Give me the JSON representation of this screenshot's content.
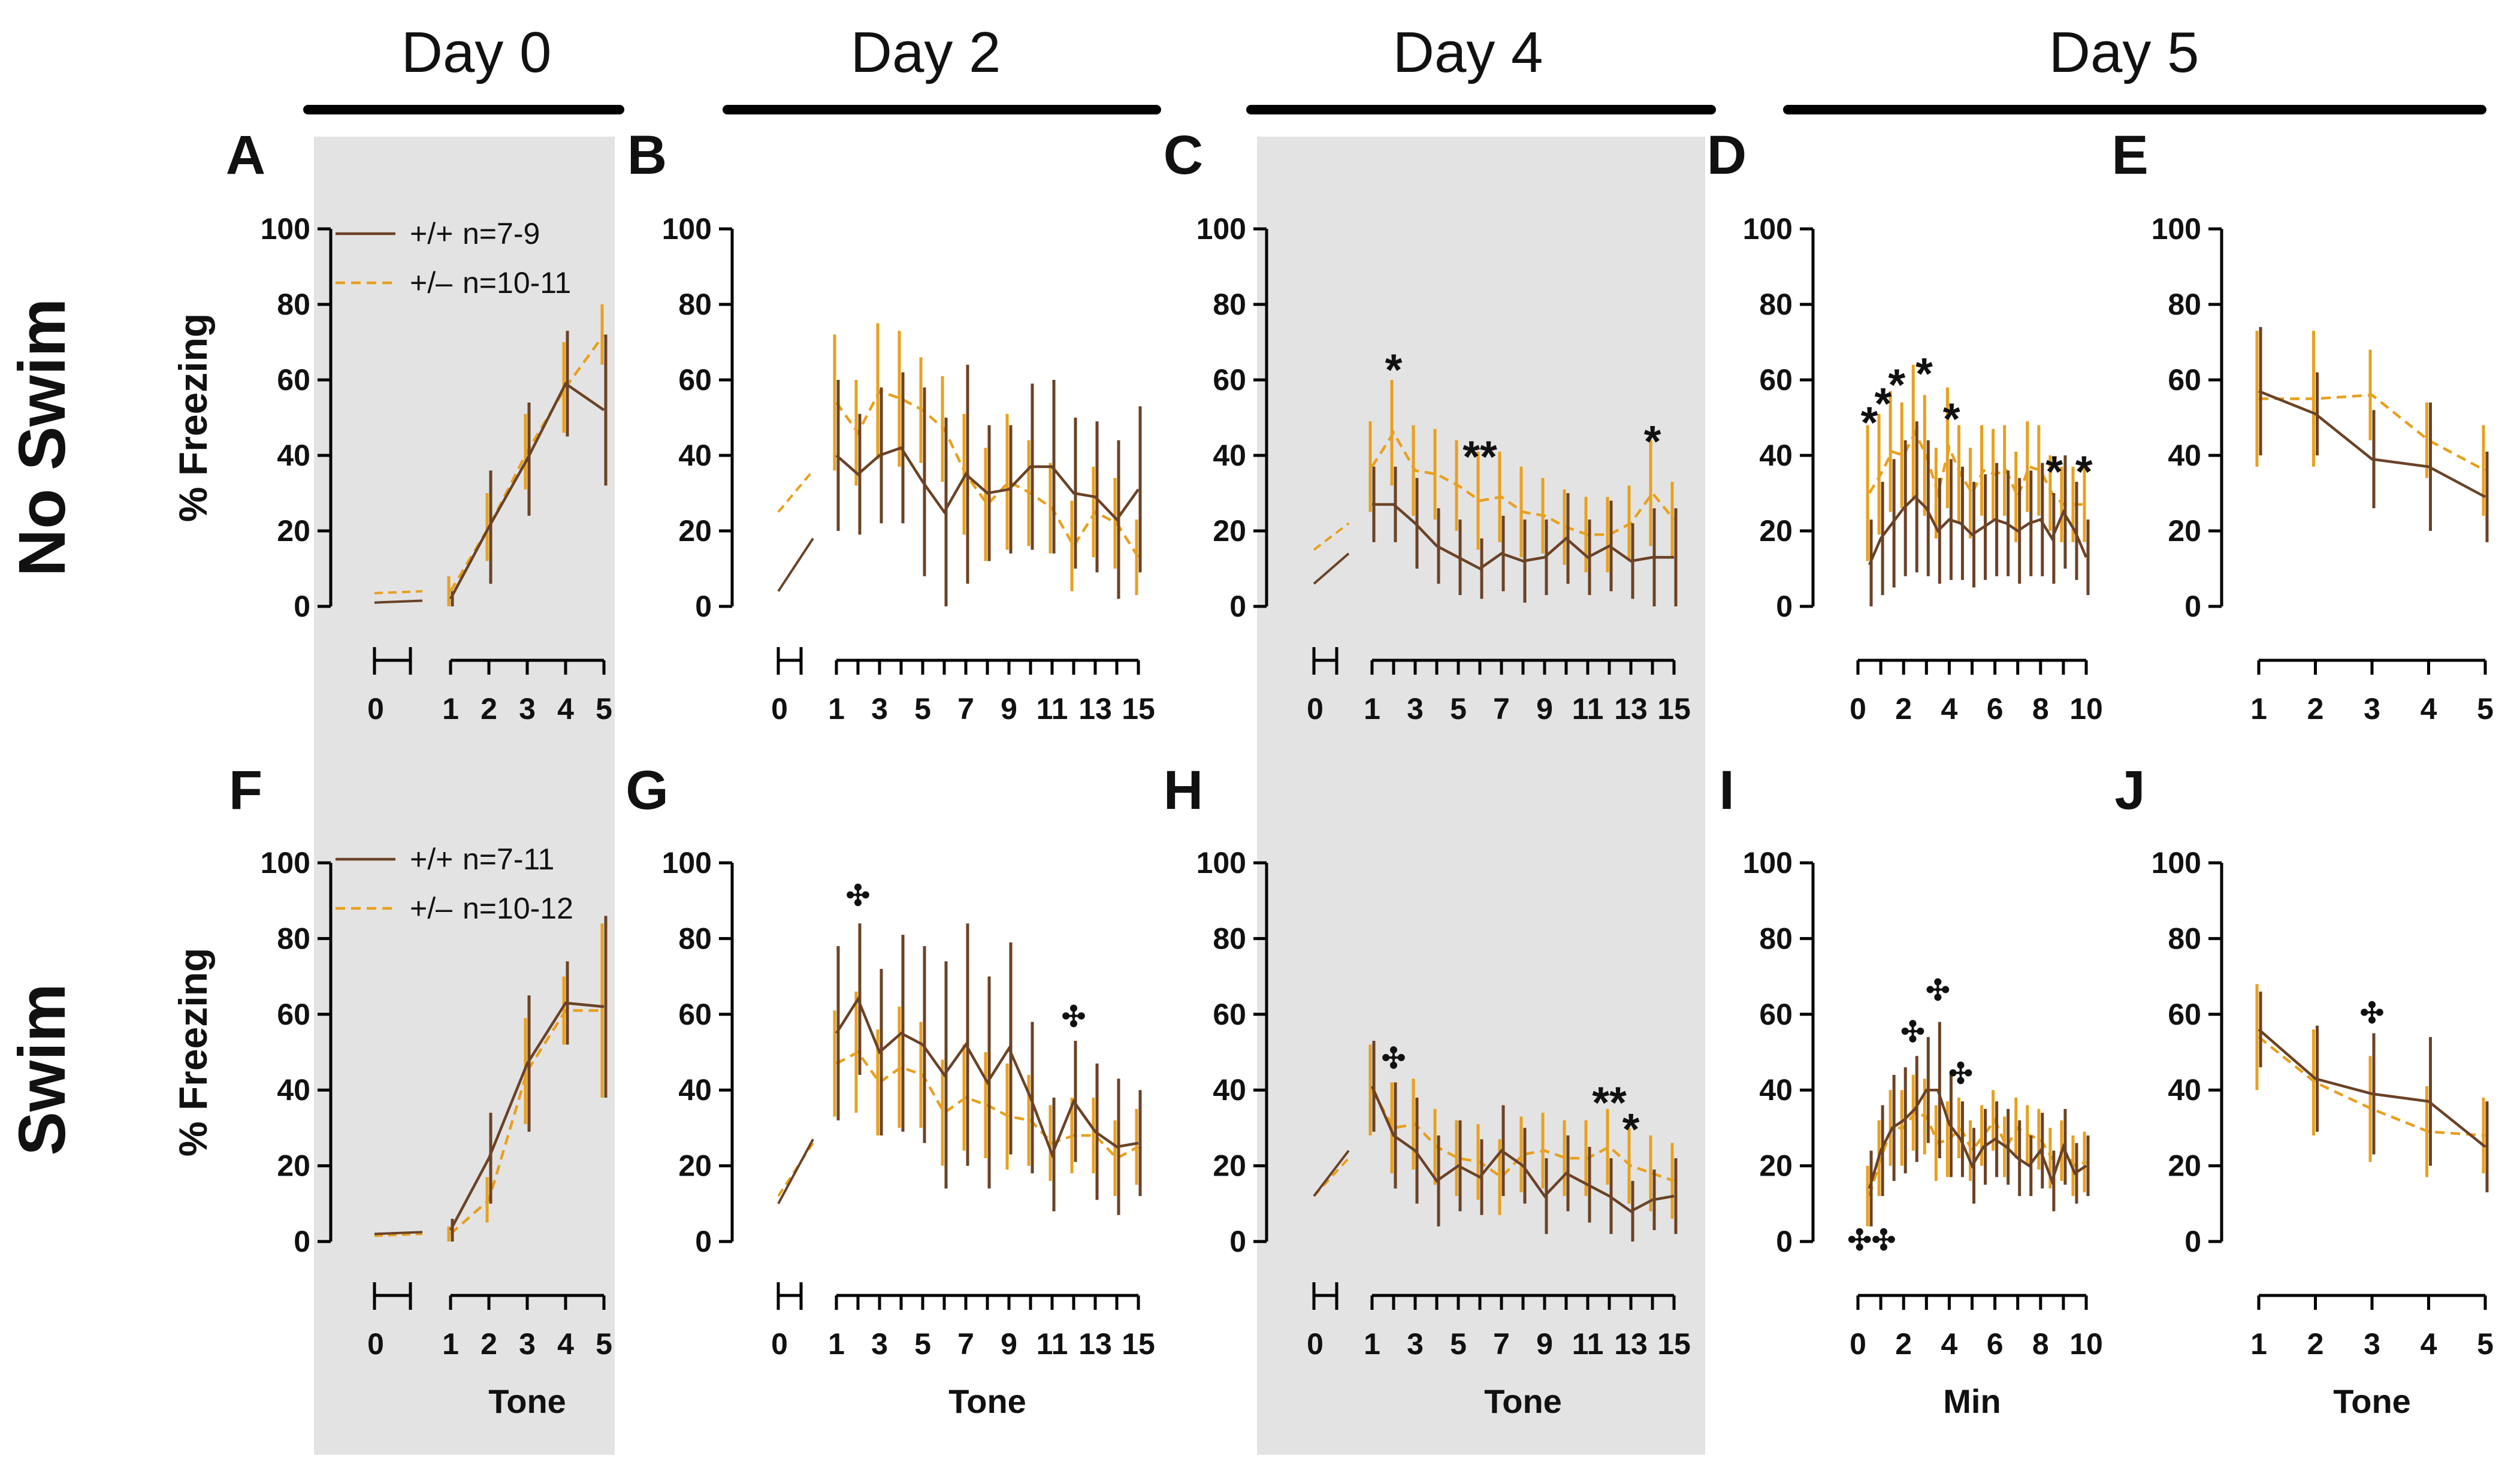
{
  "figure": {
    "days": [
      "Day 0",
      "Day 2",
      "Day 4",
      "Day 5"
    ],
    "rows": [
      "No Swim",
      "Swim"
    ],
    "ylabel": "% Freezing",
    "yticks": [
      "0",
      "20",
      "40",
      "60",
      "80",
      "100"
    ],
    "xlabels": {
      "tone": "Tone",
      "min": "Min"
    },
    "baseline_tick": "0",
    "legend_top": [
      {
        "genotype": "+/+",
        "n": "n=7-9",
        "style": "solid"
      },
      {
        "genotype": "+/–",
        "n": "n=10-11",
        "style": "dashed"
      }
    ],
    "legend_bottom": [
      {
        "genotype": "+/+",
        "n": "n=7-11",
        "style": "solid"
      },
      {
        "genotype": "+/–",
        "n": "n=10-12",
        "style": "dashed"
      }
    ]
  },
  "colors": {
    "wt": "#6b4226",
    "het": "#e8a01e",
    "shade": "#e3e3e3",
    "text": "#111111"
  },
  "chart_data": [
    {
      "panel": "A",
      "type": "line",
      "row": "No Swim",
      "day": "Day 0",
      "ylim": [
        0,
        100
      ],
      "xlabel": "",
      "baseline": {
        "wt": [
          1,
          1.5
        ],
        "het": [
          3.5,
          4
        ]
      },
      "x": [
        1,
        2,
        3,
        4,
        5
      ],
      "xticks": [
        "1",
        "2",
        "3",
        "4",
        "5"
      ],
      "series": [
        {
          "name": "+/+",
          "values": [
            2,
            21,
            39,
            59,
            52
          ],
          "err": [
            2,
            15,
            15,
            14,
            20
          ]
        },
        {
          "name": "+/–",
          "values": [
            4,
            21,
            41,
            58,
            72
          ],
          "err": [
            4,
            9,
            10,
            12,
            8
          ]
        }
      ],
      "annotations": []
    },
    {
      "panel": "B",
      "type": "line",
      "row": "No Swim",
      "day": "Day 2",
      "ylim": [
        0,
        100
      ],
      "xlabel": "",
      "baseline": {
        "wt": [
          4,
          18
        ],
        "het": [
          25,
          36
        ]
      },
      "x": [
        1,
        2,
        3,
        4,
        5,
        6,
        7,
        8,
        9,
        10,
        11,
        12,
        13,
        14,
        15
      ],
      "xticks": [
        "1",
        "3",
        "5",
        "7",
        "9",
        "11",
        "13",
        "15"
      ],
      "series": [
        {
          "name": "+/+",
          "values": [
            40,
            35,
            40,
            42,
            33,
            25,
            35,
            30,
            31,
            37,
            37,
            30,
            29,
            23,
            31
          ],
          "err": [
            20,
            16,
            18,
            20,
            25,
            25,
            29,
            18,
            17,
            22,
            23,
            20,
            20,
            21,
            22
          ]
        },
        {
          "name": "+/–",
          "values": [
            54,
            46,
            57,
            55,
            52,
            47,
            35,
            27,
            33,
            30,
            26,
            16,
            25,
            22,
            13
          ],
          "err": [
            18,
            14,
            18,
            18,
            14,
            14,
            16,
            15,
            18,
            14,
            12,
            12,
            12,
            12,
            10
          ]
        }
      ],
      "annotations": []
    },
    {
      "panel": "C",
      "type": "line",
      "row": "No Swim",
      "day": "Day 4",
      "ylim": [
        0,
        100
      ],
      "xlabel": "",
      "baseline": {
        "wt": [
          6,
          14
        ],
        "het": [
          15,
          22
        ]
      },
      "x": [
        1,
        2,
        3,
        4,
        5,
        6,
        7,
        8,
        9,
        10,
        11,
        12,
        13,
        14,
        15
      ],
      "xticks": [
        "1",
        "3",
        "5",
        "7",
        "9",
        "11",
        "13",
        "15"
      ],
      "series": [
        {
          "name": "+/+",
          "values": [
            27,
            27,
            22,
            16,
            13,
            10,
            14,
            12,
            13,
            18,
            13,
            16,
            12,
            13,
            13
          ],
          "err": [
            10,
            10,
            12,
            10,
            10,
            8,
            10,
            11,
            10,
            12,
            10,
            12,
            10,
            13,
            13
          ]
        },
        {
          "name": "+/–",
          "values": [
            37,
            46,
            36,
            35,
            32,
            28,
            29,
            25,
            24,
            21,
            19,
            19,
            22,
            30,
            23
          ],
          "err": [
            12,
            14,
            12,
            12,
            12,
            13,
            12,
            12,
            10,
            10,
            10,
            10,
            10,
            14,
            10
          ]
        }
      ],
      "annotations": [
        {
          "text": "*",
          "x": 2,
          "y": 65
        },
        {
          "text": "**",
          "x": 6,
          "y": 42
        },
        {
          "text": "*",
          "x": 14,
          "y": 46
        }
      ]
    },
    {
      "panel": "D",
      "type": "line",
      "row": "No Swim",
      "day": "Day 5",
      "ylim": [
        0,
        100
      ],
      "xlabel": "",
      "x": [
        0.5,
        1,
        1.5,
        2,
        2.5,
        3,
        3.5,
        4,
        4.5,
        5,
        5.5,
        6,
        6.5,
        7,
        7.5,
        8,
        8.5,
        9,
        9.5,
        10
      ],
      "xticks": [
        "0",
        "2",
        "4",
        "6",
        "8",
        "10"
      ],
      "series": [
        {
          "name": "+/+",
          "values": [
            11,
            18,
            22,
            26,
            29,
            26,
            20,
            23,
            22,
            19,
            21,
            23,
            22,
            20,
            22,
            23,
            18,
            25,
            20,
            13
          ],
          "err": [
            12,
            15,
            17,
            18,
            20,
            18,
            14,
            16,
            15,
            14,
            14,
            15,
            14,
            14,
            14,
            15,
            12,
            15,
            13,
            10
          ]
        },
        {
          "name": "+/–",
          "values": [
            30,
            35,
            41,
            40,
            46,
            40,
            30,
            42,
            35,
            30,
            36,
            35,
            36,
            29,
            37,
            36,
            30,
            27,
            27,
            27
          ],
          "err": [
            18,
            16,
            16,
            14,
            18,
            16,
            12,
            16,
            13,
            12,
            12,
            12,
            12,
            12,
            12,
            12,
            10,
            10,
            10,
            10
          ]
        }
      ],
      "annotations": [
        {
          "text": "*",
          "x": 0.5,
          "y": 51
        },
        {
          "text": "*",
          "x": 1.1,
          "y": 56
        },
        {
          "text": "*",
          "x": 1.7,
          "y": 61
        },
        {
          "text": "*",
          "x": 2.9,
          "y": 64
        },
        {
          "text": "*",
          "x": 4.1,
          "y": 52
        },
        {
          "text": "*",
          "x": 8.6,
          "y": 38
        },
        {
          "text": "*",
          "x": 9.9,
          "y": 38
        }
      ]
    },
    {
      "panel": "E",
      "type": "line",
      "row": "No Swim",
      "day": "Day 5",
      "ylim": [
        0,
        100
      ],
      "xlabel": "",
      "x": [
        1,
        2,
        3,
        4,
        5
      ],
      "xticks": [
        "1",
        "2",
        "3",
        "4",
        "5"
      ],
      "series": [
        {
          "name": "+/+",
          "values": [
            57,
            51,
            39,
            37,
            29
          ],
          "err": [
            17,
            11,
            13,
            17,
            12
          ]
        },
        {
          "name": "+/–",
          "values": [
            55,
            55,
            56,
            44,
            36
          ],
          "err": [
            18,
            18,
            12,
            10,
            12
          ]
        }
      ],
      "annotations": []
    },
    {
      "panel": "F",
      "type": "line",
      "row": "Swim",
      "day": "Day 0",
      "ylim": [
        0,
        100
      ],
      "xlabel": "Tone",
      "baseline": {
        "wt": [
          2,
          2.5
        ],
        "het": [
          1.5,
          2
        ]
      },
      "x": [
        1,
        2,
        3,
        4,
        5
      ],
      "xticks": [
        "1",
        "2",
        "3",
        "4",
        "5"
      ],
      "series": [
        {
          "name": "+/+",
          "values": [
            3,
            22,
            47,
            63,
            62
          ],
          "err": [
            3,
            12,
            18,
            11,
            24
          ]
        },
        {
          "name": "+/–",
          "values": [
            2,
            11,
            45,
            61,
            61
          ],
          "err": [
            2,
            6,
            14,
            9,
            23
          ]
        }
      ],
      "annotations": []
    },
    {
      "panel": "G",
      "type": "line",
      "row": "Swim",
      "day": "Day 2",
      "ylim": [
        0,
        100
      ],
      "xlabel": "Tone",
      "baseline": {
        "wt": [
          10,
          27
        ],
        "het": [
          12,
          26
        ]
      },
      "x": [
        1,
        2,
        3,
        4,
        5,
        6,
        7,
        8,
        9,
        10,
        11,
        12,
        13,
        14,
        15
      ],
      "xticks": [
        "1",
        "3",
        "5",
        "7",
        "9",
        "11",
        "13",
        "15"
      ],
      "series": [
        {
          "name": "+/+",
          "values": [
            55,
            64,
            50,
            55,
            52,
            44,
            52,
            42,
            51,
            38,
            23,
            37,
            29,
            25,
            26
          ],
          "err": [
            23,
            20,
            22,
            26,
            26,
            30,
            32,
            28,
            28,
            20,
            15,
            16,
            18,
            18,
            14
          ]
        },
        {
          "name": "+/–",
          "values": [
            47,
            50,
            42,
            46,
            44,
            34,
            38,
            36,
            33,
            32,
            26,
            28,
            28,
            22,
            25
          ],
          "err": [
            14,
            16,
            14,
            16,
            14,
            14,
            14,
            14,
            14,
            12,
            10,
            10,
            10,
            10,
            10
          ]
        }
      ],
      "annotations": [
        {
          "text": "✣",
          "x": 2,
          "y": 91,
          "color": "dark"
        },
        {
          "text": "✣",
          "x": 12,
          "y": 59,
          "color": "gray"
        }
      ]
    },
    {
      "panel": "H",
      "type": "line",
      "row": "Swim",
      "day": "Day 4",
      "ylim": [
        0,
        100
      ],
      "xlabel": "Tone",
      "baseline": {
        "wt": [
          12,
          24
        ],
        "het": [
          12,
          22
        ]
      },
      "x": [
        1,
        2,
        3,
        4,
        5,
        6,
        7,
        8,
        9,
        10,
        11,
        12,
        13,
        14,
        15
      ],
      "xticks": [
        "1",
        "3",
        "5",
        "7",
        "9",
        "11",
        "13",
        "15"
      ],
      "series": [
        {
          "name": "+/+",
          "values": [
            41,
            28,
            24,
            16,
            20,
            17,
            24,
            20,
            12,
            18,
            15,
            12,
            8,
            11,
            12
          ],
          "err": [
            12,
            14,
            14,
            12,
            12,
            10,
            12,
            10,
            10,
            10,
            10,
            10,
            8,
            8,
            10
          ]
        },
        {
          "name": "+/–",
          "values": [
            40,
            30,
            31,
            25,
            22,
            21,
            17,
            23,
            24,
            22,
            22,
            25,
            20,
            18,
            16
          ],
          "err": [
            12,
            12,
            12,
            10,
            10,
            10,
            10,
            10,
            10,
            10,
            10,
            10,
            10,
            10,
            10
          ]
        }
      ],
      "annotations": [
        {
          "text": "✣",
          "x": 2,
          "y": 48,
          "color": "gray"
        },
        {
          "text": "**",
          "x": 12,
          "y": 39
        },
        {
          "text": "*",
          "x": 13,
          "y": 32
        }
      ]
    },
    {
      "panel": "I",
      "type": "line",
      "row": "Swim",
      "day": "Day 5",
      "ylim": [
        0,
        100
      ],
      "xlabel": "Min",
      "x": [
        0.5,
        1,
        1.5,
        2,
        2.5,
        3,
        3.5,
        4,
        4.5,
        5,
        5.5,
        6,
        6.5,
        7,
        7.5,
        8,
        8.5,
        9,
        9.5,
        10
      ],
      "xticks": [
        "0",
        "2",
        "4",
        "6",
        "8",
        "10"
      ],
      "series": [
        {
          "name": "+/+",
          "values": [
            14,
            24,
            30,
            32,
            35,
            40,
            40,
            31,
            27,
            20,
            25,
            27,
            25,
            22,
            20,
            24,
            16,
            25,
            18,
            20
          ],
          "err": [
            10,
            12,
            14,
            14,
            14,
            14,
            18,
            14,
            10,
            10,
            10,
            10,
            10,
            10,
            8,
            10,
            8,
            10,
            8,
            8
          ]
        },
        {
          "name": "+/–",
          "values": [
            12,
            22,
            30,
            30,
            34,
            33,
            26,
            27,
            30,
            24,
            28,
            32,
            25,
            30,
            28,
            27,
            22,
            24,
            20,
            21
          ],
          "err": [
            8,
            10,
            10,
            10,
            10,
            10,
            10,
            10,
            8,
            8,
            8,
            8,
            8,
            8,
            8,
            8,
            8,
            8,
            8,
            8
          ]
        }
      ],
      "annotations": [
        {
          "text": "✣✣",
          "x": 0.6,
          "y": 0,
          "color": "gray"
        },
        {
          "text": "✣",
          "x": 2.4,
          "y": 55,
          "color": "gray"
        },
        {
          "text": "✣",
          "x": 3.5,
          "y": 66,
          "color": "dark"
        },
        {
          "text": "✣",
          "x": 4.5,
          "y": 44,
          "color": "gray"
        }
      ]
    },
    {
      "panel": "J",
      "type": "line",
      "row": "Swim",
      "day": "Day 5",
      "ylim": [
        0,
        100
      ],
      "xlabel": "Tone",
      "x": [
        1,
        2,
        3,
        4,
        5
      ],
      "xticks": [
        "1",
        "2",
        "3",
        "4",
        "5"
      ],
      "series": [
        {
          "name": "+/+",
          "values": [
            56,
            43,
            39,
            37,
            25
          ],
          "err": [
            10,
            14,
            16,
            17,
            12
          ]
        },
        {
          "name": "+/–",
          "values": [
            54,
            42,
            35,
            29,
            28
          ],
          "err": [
            14,
            14,
            14,
            12,
            10
          ]
        }
      ],
      "annotations": [
        {
          "text": "✣",
          "x": 3,
          "y": 60,
          "color": "gray"
        }
      ]
    }
  ]
}
